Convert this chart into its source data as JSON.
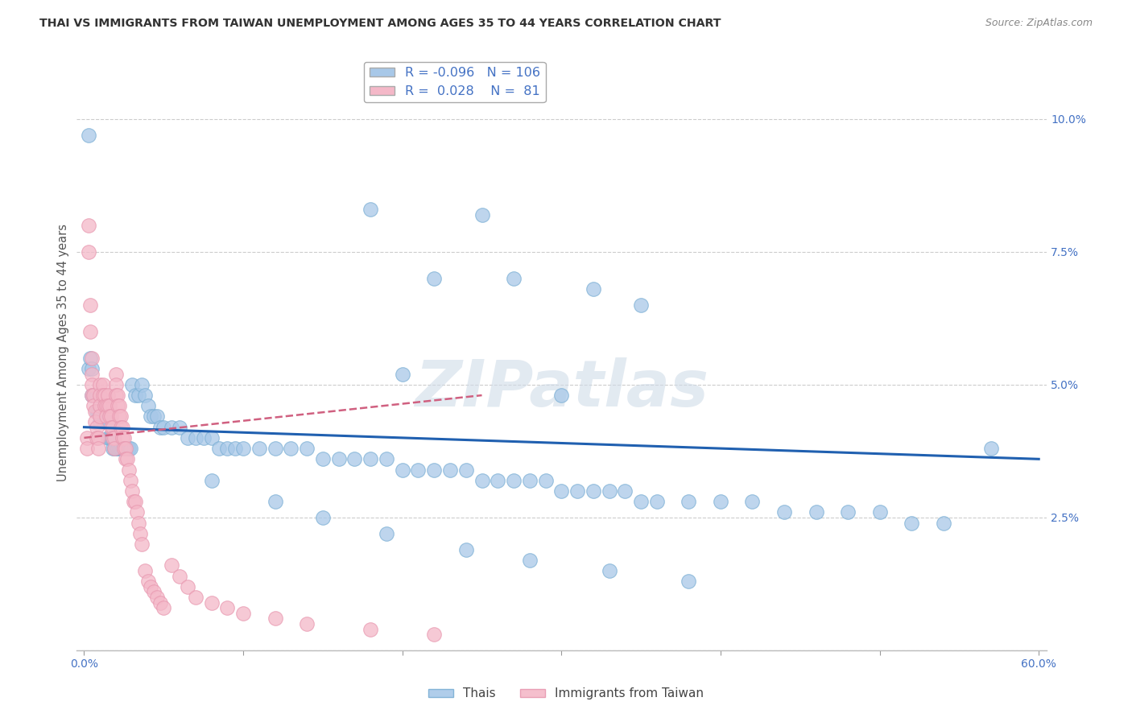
{
  "title": "THAI VS IMMIGRANTS FROM TAIWAN UNEMPLOYMENT AMONG AGES 35 TO 44 YEARS CORRELATION CHART",
  "source": "Source: ZipAtlas.com",
  "ylabel": "Unemployment Among Ages 35 to 44 years",
  "xlim": [
    -0.005,
    0.605
  ],
  "ylim": [
    0.0,
    0.112
  ],
  "yticks": [
    0.0,
    0.025,
    0.05,
    0.075,
    0.1
  ],
  "ytick_labels": [
    "",
    "2.5%",
    "5.0%",
    "7.5%",
    "10.0%"
  ],
  "xtick_positions": [
    0.0,
    0.1,
    0.2,
    0.3,
    0.4,
    0.5,
    0.6
  ],
  "xtick_labels_ends": {
    "0.0": "0.0%",
    "0.6": "60.0%"
  },
  "thais_R": -0.096,
  "thais_N": 106,
  "taiwan_R": 0.028,
  "taiwan_N": 81,
  "blue_color": "#a8c8e8",
  "pink_color": "#f4b8c8",
  "blue_edge": "#7bafd4",
  "pink_edge": "#e898b0",
  "blue_line_color": "#2060b0",
  "pink_line_color": "#d06080",
  "axis_color": "#4472c4",
  "watermark": "ZIPatlas",
  "background_color": "#ffffff",
  "grid_color": "#cccccc",
  "thais_x": [
    0.003,
    0.003,
    0.004,
    0.005,
    0.005,
    0.006,
    0.007,
    0.008,
    0.008,
    0.009,
    0.01,
    0.01,
    0.01,
    0.012,
    0.013,
    0.014,
    0.015,
    0.015,
    0.016,
    0.017,
    0.018,
    0.018,
    0.019,
    0.02,
    0.021,
    0.022,
    0.023,
    0.024,
    0.025,
    0.026,
    0.027,
    0.028,
    0.029,
    0.03,
    0.032,
    0.034,
    0.036,
    0.038,
    0.04,
    0.042,
    0.044,
    0.046,
    0.048,
    0.05,
    0.055,
    0.06,
    0.065,
    0.07,
    0.075,
    0.08,
    0.085,
    0.09,
    0.095,
    0.1,
    0.11,
    0.12,
    0.13,
    0.14,
    0.15,
    0.16,
    0.17,
    0.18,
    0.19,
    0.2,
    0.21,
    0.22,
    0.23,
    0.24,
    0.25,
    0.26,
    0.27,
    0.28,
    0.29,
    0.3,
    0.31,
    0.32,
    0.33,
    0.34,
    0.35,
    0.36,
    0.38,
    0.4,
    0.42,
    0.44,
    0.46,
    0.48,
    0.5,
    0.52,
    0.54,
    0.57,
    0.22,
    0.27,
    0.32,
    0.35,
    0.25,
    0.3,
    0.18,
    0.2,
    0.08,
    0.12,
    0.15,
    0.19,
    0.24,
    0.28,
    0.33,
    0.38
  ],
  "thais_y": [
    0.097,
    0.053,
    0.055,
    0.053,
    0.048,
    0.048,
    0.048,
    0.048,
    0.045,
    0.045,
    0.048,
    0.045,
    0.043,
    0.043,
    0.043,
    0.043,
    0.043,
    0.04,
    0.04,
    0.04,
    0.04,
    0.038,
    0.038,
    0.038,
    0.038,
    0.038,
    0.038,
    0.038,
    0.038,
    0.038,
    0.038,
    0.038,
    0.038,
    0.05,
    0.048,
    0.048,
    0.05,
    0.048,
    0.046,
    0.044,
    0.044,
    0.044,
    0.042,
    0.042,
    0.042,
    0.042,
    0.04,
    0.04,
    0.04,
    0.04,
    0.038,
    0.038,
    0.038,
    0.038,
    0.038,
    0.038,
    0.038,
    0.038,
    0.036,
    0.036,
    0.036,
    0.036,
    0.036,
    0.034,
    0.034,
    0.034,
    0.034,
    0.034,
    0.032,
    0.032,
    0.032,
    0.032,
    0.032,
    0.03,
    0.03,
    0.03,
    0.03,
    0.03,
    0.028,
    0.028,
    0.028,
    0.028,
    0.028,
    0.026,
    0.026,
    0.026,
    0.026,
    0.024,
    0.024,
    0.038,
    0.07,
    0.07,
    0.068,
    0.065,
    0.082,
    0.048,
    0.083,
    0.052,
    0.032,
    0.028,
    0.025,
    0.022,
    0.019,
    0.017,
    0.015,
    0.013
  ],
  "taiwan_x": [
    0.002,
    0.002,
    0.003,
    0.003,
    0.004,
    0.004,
    0.005,
    0.005,
    0.005,
    0.005,
    0.006,
    0.006,
    0.007,
    0.007,
    0.008,
    0.008,
    0.009,
    0.009,
    0.01,
    0.01,
    0.01,
    0.01,
    0.012,
    0.012,
    0.013,
    0.013,
    0.014,
    0.014,
    0.015,
    0.015,
    0.016,
    0.016,
    0.017,
    0.017,
    0.018,
    0.018,
    0.019,
    0.019,
    0.02,
    0.02,
    0.02,
    0.021,
    0.021,
    0.022,
    0.022,
    0.023,
    0.023,
    0.024,
    0.024,
    0.025,
    0.025,
    0.026,
    0.026,
    0.027,
    0.028,
    0.029,
    0.03,
    0.031,
    0.032,
    0.033,
    0.034,
    0.035,
    0.036,
    0.038,
    0.04,
    0.042,
    0.044,
    0.046,
    0.048,
    0.05,
    0.055,
    0.06,
    0.065,
    0.07,
    0.08,
    0.09,
    0.1,
    0.12,
    0.14,
    0.18,
    0.22
  ],
  "taiwan_y": [
    0.04,
    0.038,
    0.08,
    0.075,
    0.065,
    0.06,
    0.055,
    0.052,
    0.05,
    0.048,
    0.048,
    0.046,
    0.045,
    0.043,
    0.042,
    0.04,
    0.04,
    0.038,
    0.05,
    0.048,
    0.046,
    0.044,
    0.05,
    0.048,
    0.048,
    0.046,
    0.046,
    0.044,
    0.048,
    0.046,
    0.046,
    0.044,
    0.044,
    0.042,
    0.042,
    0.04,
    0.04,
    0.038,
    0.052,
    0.05,
    0.048,
    0.048,
    0.046,
    0.046,
    0.044,
    0.044,
    0.042,
    0.042,
    0.04,
    0.04,
    0.038,
    0.038,
    0.036,
    0.036,
    0.034,
    0.032,
    0.03,
    0.028,
    0.028,
    0.026,
    0.024,
    0.022,
    0.02,
    0.015,
    0.013,
    0.012,
    0.011,
    0.01,
    0.009,
    0.008,
    0.016,
    0.014,
    0.012,
    0.01,
    0.009,
    0.008,
    0.007,
    0.006,
    0.005,
    0.004,
    0.003
  ],
  "blue_trend_x": [
    0.0,
    0.6
  ],
  "blue_trend_y": [
    0.042,
    0.036
  ],
  "pink_trend_x": [
    0.0,
    0.25
  ],
  "pink_trend_y": [
    0.04,
    0.048
  ]
}
